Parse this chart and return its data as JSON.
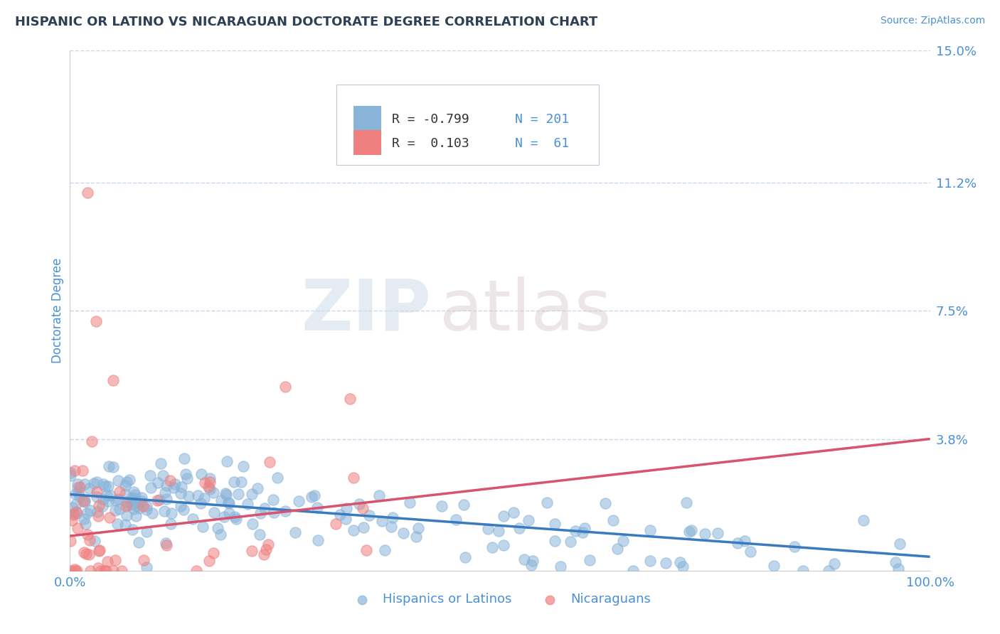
{
  "title": "HISPANIC OR LATINO VS NICARAGUAN DOCTORATE DEGREE CORRELATION CHART",
  "source": "Source: ZipAtlas.com",
  "ylabel": "Doctorate Degree",
  "xlim": [
    0.0,
    100.0
  ],
  "ylim": [
    0.0,
    15.0
  ],
  "ytick_positions": [
    3.8,
    7.5,
    11.2,
    15.0
  ],
  "ytick_labels": [
    "3.8%",
    "7.5%",
    "11.2%",
    "15.0%"
  ],
  "xtick_vals": [
    0,
    100
  ],
  "xtick_labels": [
    "0.0%",
    "100.0%"
  ],
  "watermark_zip": "ZIP",
  "watermark_atlas": "atlas",
  "blue_scatter_color": "#89b4d9",
  "pink_scatter_color": "#f08080",
  "blue_line_color": "#3a7bbf",
  "pink_line_color": "#d9536e",
  "grid_color": "#c8d8ec",
  "background_color": "#ffffff",
  "title_color": "#2e4053",
  "axis_label_color": "#4a90d9",
  "legend_r_blue": "R = -0.799",
  "legend_n_blue": "N = 201",
  "legend_r_pink": "R =  0.103",
  "legend_n_pink": "N =  61",
  "blue_slope": -0.018,
  "blue_intercept": 2.2,
  "pink_slope": 0.028,
  "pink_intercept": 1.0,
  "n_blue": 201,
  "n_pink": 61
}
